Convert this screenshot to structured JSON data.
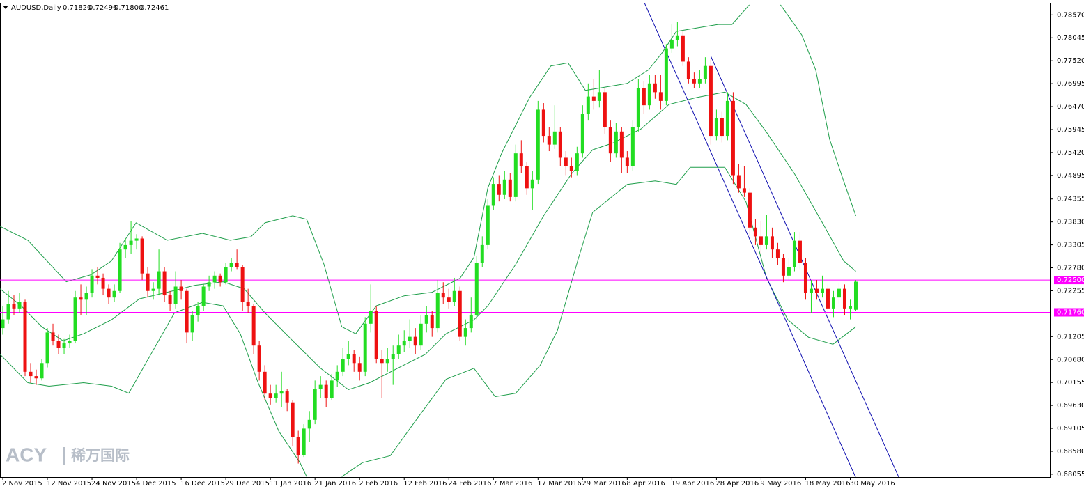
{
  "chart_data": {
    "type": "candlestick",
    "title": "AUDUSD,Daily",
    "ohlc_labels": [
      "0.71820",
      "0.72496",
      "0.71800",
      "0.72461"
    ],
    "up_color": "#22dd22",
    "down_color": "#ee1111",
    "ylim": [
      0.6799,
      0.7883
    ],
    "xlim": [
      -0.5,
      187.8
    ],
    "yticks": [
      {
        "value": 0.7857,
        "label": "0.78570"
      },
      {
        "value": 0.78045,
        "label": "0.78045"
      },
      {
        "value": 0.7752,
        "label": "0.77520"
      },
      {
        "value": 0.76995,
        "label": "0.76995"
      },
      {
        "value": 0.7647,
        "label": "0.76470"
      },
      {
        "value": 0.75945,
        "label": "0.75945"
      },
      {
        "value": 0.7542,
        "label": "0.75420"
      },
      {
        "value": 0.74895,
        "label": "0.74895"
      },
      {
        "value": 0.74355,
        "label": "0.74355"
      },
      {
        "value": 0.7383,
        "label": "0.73830"
      },
      {
        "value": 0.73305,
        "label": "0.73305"
      },
      {
        "value": 0.7278,
        "label": "0.72780"
      },
      {
        "value": 0.72255,
        "label": "0.72255"
      },
      {
        "value": 0.71205,
        "label": "0.71205"
      },
      {
        "value": 0.7068,
        "label": "0.70680"
      },
      {
        "value": 0.70155,
        "label": "0.70155"
      },
      {
        "value": 0.6963,
        "label": "0.69630"
      },
      {
        "value": 0.69105,
        "label": "0.69105"
      },
      {
        "value": 0.6858,
        "label": "0.68580"
      },
      {
        "value": 0.68055,
        "label": "0.68055"
      }
    ],
    "xticks": [
      {
        "value": 0,
        "label": "2 Nov 2015"
      },
      {
        "value": 8,
        "label": "12 Nov 2015"
      },
      {
        "value": 16,
        "label": "24 Nov 2015"
      },
      {
        "value": 24,
        "label": "4 Dec 2015"
      },
      {
        "value": 32,
        "label": "16 Dec 2015"
      },
      {
        "value": 40,
        "label": "29 Dec 2015"
      },
      {
        "value": 48,
        "label": "11 Jan 2016"
      },
      {
        "value": 56,
        "label": "21 Jan 2016"
      },
      {
        "value": 64,
        "label": "2 Feb 2016"
      },
      {
        "value": 72,
        "label": "12 Feb 2016"
      },
      {
        "value": 80,
        "label": "24 Feb 2016"
      },
      {
        "value": 88,
        "label": "7 Mar 2016"
      },
      {
        "value": 96,
        "label": "17 Mar 2016"
      },
      {
        "value": 104,
        "label": "29 Mar 2016"
      },
      {
        "value": 112,
        "label": "8 Apr 2016"
      },
      {
        "value": 120,
        "label": "19 Apr 2016"
      },
      {
        "value": 128,
        "label": "28 Apr 2016"
      },
      {
        "value": 136,
        "label": "9 May 2016"
      },
      {
        "value": 144,
        "label": "18 May 2016"
      },
      {
        "value": 152,
        "label": "30 May 2016"
      }
    ],
    "levels": [
      {
        "value": 0.725,
        "label": "0.72500",
        "color": "#ff00ff"
      },
      {
        "value": 0.7176,
        "label": "0.71760",
        "color": "#ff00ff"
      }
    ],
    "ohlc": [
      [
        0.714,
        0.719,
        0.7125,
        0.716
      ],
      [
        0.716,
        0.7225,
        0.715,
        0.7195
      ],
      [
        0.7195,
        0.7215,
        0.717,
        0.7185
      ],
      [
        0.7185,
        0.722,
        0.7175,
        0.72
      ],
      [
        0.72,
        0.7205,
        0.703,
        0.704
      ],
      [
        0.704,
        0.706,
        0.7015,
        0.703
      ],
      [
        0.703,
        0.7045,
        0.701,
        0.7025
      ],
      [
        0.7025,
        0.707,
        0.702,
        0.706
      ],
      [
        0.706,
        0.714,
        0.705,
        0.713
      ],
      [
        0.713,
        0.715,
        0.71,
        0.711
      ],
      [
        0.711,
        0.7125,
        0.708,
        0.7095
      ],
      [
        0.7095,
        0.7115,
        0.708,
        0.7105
      ],
      [
        0.7105,
        0.7125,
        0.7095,
        0.711
      ],
      [
        0.711,
        0.7225,
        0.7105,
        0.721
      ],
      [
        0.721,
        0.724,
        0.717,
        0.7205
      ],
      [
        0.7205,
        0.7235,
        0.717,
        0.722
      ],
      [
        0.722,
        0.7275,
        0.721,
        0.726
      ],
      [
        0.726,
        0.728,
        0.724,
        0.7255
      ],
      [
        0.7255,
        0.7265,
        0.7215,
        0.723
      ],
      [
        0.723,
        0.724,
        0.7195,
        0.721
      ],
      [
        0.721,
        0.724,
        0.72,
        0.7225
      ],
      [
        0.7225,
        0.7335,
        0.722,
        0.732
      ],
      [
        0.732,
        0.7345,
        0.73,
        0.733
      ],
      [
        0.733,
        0.7385,
        0.731,
        0.734
      ],
      [
        0.734,
        0.7355,
        0.732,
        0.7345
      ],
      [
        0.7345,
        0.735,
        0.725,
        0.7265
      ],
      [
        0.7265,
        0.728,
        0.721,
        0.7225
      ],
      [
        0.7225,
        0.7245,
        0.7205,
        0.723
      ],
      [
        0.723,
        0.732,
        0.7215,
        0.727
      ],
      [
        0.727,
        0.728,
        0.72,
        0.7215
      ],
      [
        0.7215,
        0.7225,
        0.718,
        0.7195
      ],
      [
        0.7195,
        0.727,
        0.7185,
        0.7235
      ],
      [
        0.7235,
        0.725,
        0.7205,
        0.7225
      ],
      [
        0.7225,
        0.723,
        0.7105,
        0.713
      ],
      [
        0.713,
        0.718,
        0.711,
        0.717
      ],
      [
        0.717,
        0.72,
        0.7155,
        0.719
      ],
      [
        0.719,
        0.724,
        0.718,
        0.7235
      ],
      [
        0.7235,
        0.726,
        0.7225,
        0.7245
      ],
      [
        0.7245,
        0.727,
        0.723,
        0.726
      ],
      [
        0.726,
        0.7265,
        0.7235,
        0.7245
      ],
      [
        0.7245,
        0.729,
        0.724,
        0.728
      ],
      [
        0.728,
        0.73,
        0.727,
        0.729
      ],
      [
        0.729,
        0.732,
        0.7275,
        0.728
      ],
      [
        0.728,
        0.7285,
        0.718,
        0.72
      ],
      [
        0.72,
        0.723,
        0.7175,
        0.719
      ],
      [
        0.719,
        0.7195,
        0.708,
        0.71
      ],
      [
        0.71,
        0.711,
        0.702,
        0.704
      ],
      [
        0.704,
        0.7055,
        0.6975,
        0.699
      ],
      [
        0.699,
        0.701,
        0.6965,
        0.698
      ],
      [
        0.698,
        0.701,
        0.697,
        0.699
      ],
      [
        0.699,
        0.704,
        0.696,
        0.6995
      ],
      [
        0.6995,
        0.7,
        0.695,
        0.697
      ],
      [
        0.697,
        0.6975,
        0.687,
        0.689
      ],
      [
        0.689,
        0.6905,
        0.683,
        0.685
      ],
      [
        0.685,
        0.692,
        0.6845,
        0.691
      ],
      [
        0.691,
        0.695,
        0.688,
        0.693
      ],
      [
        0.693,
        0.702,
        0.692,
        0.7
      ],
      [
        0.7,
        0.703,
        0.698,
        0.701
      ],
      [
        0.701,
        0.702,
        0.696,
        0.698
      ],
      [
        0.698,
        0.7035,
        0.6975,
        0.702
      ],
      [
        0.702,
        0.7055,
        0.7005,
        0.704
      ],
      [
        0.704,
        0.7095,
        0.703,
        0.707
      ],
      [
        0.707,
        0.711,
        0.7055,
        0.708
      ],
      [
        0.708,
        0.709,
        0.704,
        0.706
      ],
      [
        0.706,
        0.7075,
        0.702,
        0.704
      ],
      [
        0.704,
        0.7165,
        0.703,
        0.715
      ],
      [
        0.715,
        0.724,
        0.713,
        0.718
      ],
      [
        0.718,
        0.719,
        0.706,
        0.707
      ],
      [
        0.707,
        0.709,
        0.698,
        0.706
      ],
      [
        0.706,
        0.7095,
        0.704,
        0.707
      ],
      [
        0.707,
        0.71,
        0.701,
        0.708
      ],
      [
        0.708,
        0.7125,
        0.707,
        0.71
      ],
      [
        0.71,
        0.7135,
        0.7085,
        0.711
      ],
      [
        0.711,
        0.716,
        0.7095,
        0.712
      ],
      [
        0.712,
        0.714,
        0.708,
        0.71
      ],
      [
        0.71,
        0.717,
        0.709,
        0.715
      ],
      [
        0.715,
        0.719,
        0.713,
        0.717
      ],
      [
        0.717,
        0.718,
        0.712,
        0.714
      ],
      [
        0.714,
        0.725,
        0.713,
        0.722
      ],
      [
        0.722,
        0.7245,
        0.7195,
        0.721
      ],
      [
        0.721,
        0.723,
        0.7185,
        0.72
      ],
      [
        0.72,
        0.7255,
        0.719,
        0.7225
      ],
      [
        0.7225,
        0.7235,
        0.711,
        0.712
      ],
      [
        0.712,
        0.716,
        0.71,
        0.714
      ],
      [
        0.714,
        0.721,
        0.713,
        0.717
      ],
      [
        0.717,
        0.7305,
        0.716,
        0.729
      ],
      [
        0.729,
        0.735,
        0.728,
        0.733
      ],
      [
        0.733,
        0.7435,
        0.732,
        0.742
      ],
      [
        0.742,
        0.7485,
        0.741,
        0.747
      ],
      [
        0.747,
        0.749,
        0.743,
        0.7445
      ],
      [
        0.7445,
        0.75,
        0.7435,
        0.748
      ],
      [
        0.748,
        0.7495,
        0.743,
        0.744
      ],
      [
        0.744,
        0.756,
        0.743,
        0.754
      ],
      [
        0.754,
        0.757,
        0.7495,
        0.751
      ],
      [
        0.751,
        0.752,
        0.7445,
        0.746
      ],
      [
        0.746,
        0.75,
        0.741,
        0.748
      ],
      [
        0.748,
        0.766,
        0.747,
        0.764
      ],
      [
        0.764,
        0.7655,
        0.7565,
        0.758
      ],
      [
        0.758,
        0.76,
        0.7545,
        0.756
      ],
      [
        0.756,
        0.765,
        0.755,
        0.759
      ],
      [
        0.759,
        0.76,
        0.751,
        0.753
      ],
      [
        0.753,
        0.7545,
        0.749,
        0.751
      ],
      [
        0.751,
        0.753,
        0.7485,
        0.75
      ],
      [
        0.75,
        0.7555,
        0.749,
        0.754
      ],
      [
        0.754,
        0.765,
        0.753,
        0.763
      ],
      [
        0.763,
        0.77,
        0.7615,
        0.767
      ],
      [
        0.767,
        0.771,
        0.764,
        0.766
      ],
      [
        0.766,
        0.773,
        0.7645,
        0.768
      ],
      [
        0.768,
        0.769,
        0.7585,
        0.76
      ],
      [
        0.76,
        0.7615,
        0.752,
        0.754
      ],
      [
        0.754,
        0.761,
        0.753,
        0.759
      ],
      [
        0.759,
        0.76,
        0.7495,
        0.753
      ],
      [
        0.753,
        0.7545,
        0.7495,
        0.751
      ],
      [
        0.751,
        0.7615,
        0.75,
        0.76
      ],
      [
        0.76,
        0.771,
        0.759,
        0.769
      ],
      [
        0.769,
        0.7705,
        0.763,
        0.765
      ],
      [
        0.765,
        0.772,
        0.764,
        0.77
      ],
      [
        0.77,
        0.772,
        0.7665,
        0.768
      ],
      [
        0.768,
        0.772,
        0.764,
        0.766
      ],
      [
        0.766,
        0.779,
        0.765,
        0.778
      ],
      [
        0.778,
        0.7835,
        0.777,
        0.78
      ],
      [
        0.78,
        0.784,
        0.7785,
        0.781
      ],
      [
        0.781,
        0.782,
        0.774,
        0.775
      ],
      [
        0.775,
        0.776,
        0.77,
        0.771
      ],
      [
        0.771,
        0.7725,
        0.769,
        0.77
      ],
      [
        0.77,
        0.773,
        0.769,
        0.771
      ],
      [
        0.771,
        0.776,
        0.77,
        0.774
      ],
      [
        0.774,
        0.7755,
        0.756,
        0.758
      ],
      [
        0.758,
        0.764,
        0.757,
        0.762
      ],
      [
        0.762,
        0.7635,
        0.7565,
        0.758
      ],
      [
        0.758,
        0.768,
        0.757,
        0.766
      ],
      [
        0.766,
        0.768,
        0.747,
        0.749
      ],
      [
        0.749,
        0.7515,
        0.745,
        0.746
      ],
      [
        0.746,
        0.751,
        0.744,
        0.745
      ],
      [
        0.745,
        0.746,
        0.735,
        0.737
      ],
      [
        0.737,
        0.739,
        0.733,
        0.735
      ],
      [
        0.735,
        0.7385,
        0.731,
        0.733
      ],
      [
        0.733,
        0.74,
        0.732,
        0.735
      ],
      [
        0.735,
        0.737,
        0.73,
        0.732
      ],
      [
        0.732,
        0.7335,
        0.7285,
        0.73
      ],
      [
        0.73,
        0.731,
        0.7245,
        0.726
      ],
      [
        0.726,
        0.73,
        0.725,
        0.728
      ],
      [
        0.728,
        0.736,
        0.727,
        0.734
      ],
      [
        0.734,
        0.736,
        0.7275,
        0.729
      ],
      [
        0.729,
        0.73,
        0.7205,
        0.722
      ],
      [
        0.722,
        0.725,
        0.7175,
        0.723
      ],
      [
        0.723,
        0.725,
        0.7205,
        0.722
      ],
      [
        0.722,
        0.726,
        0.721,
        0.723
      ],
      [
        0.723,
        0.724,
        0.715,
        0.7185
      ],
      [
        0.7185,
        0.7225,
        0.7165,
        0.721
      ],
      [
        0.721,
        0.7245,
        0.7195,
        0.723
      ],
      [
        0.723,
        0.724,
        0.717,
        0.7185
      ],
      [
        0.7185,
        0.7205,
        0.716,
        0.719
      ],
      [
        0.7182,
        0.72496,
        0.718,
        0.72461
      ]
    ],
    "series": [
      {
        "color": "#1e9e4a",
        "x": [
          -0.5,
          4.5,
          11.4,
          15.8,
          19.5,
          23.9,
          29.5,
          35.8,
          40.8,
          44.5,
          47,
          52,
          54.5,
          57.6,
          60.8,
          63.3,
          67,
          72,
          77,
          82,
          84.5,
          87,
          89.5,
          94.5,
          98.3,
          101.4,
          104.5,
          108.3,
          112,
          115.8,
          118.3,
          120.8,
          124.5,
          128.3,
          130.8,
          133.9,
          null,
          139.5,
          143.3,
          145.8,
          148.3,
          150.8,
          153
        ],
        "values": [
          0.7373,
          0.7341,
          0.7246,
          0.7262,
          0.7294,
          0.7381,
          0.7341,
          0.7357,
          0.7341,
          0.7349,
          0.7381,
          0.7397,
          0.7389,
          0.7286,
          0.7143,
          0.7127,
          0.7191,
          0.7214,
          0.7222,
          0.7254,
          0.7302,
          0.7461,
          0.7541,
          0.7668,
          0.774,
          0.7747,
          0.7684,
          0.7692,
          0.77,
          0.7731,
          0.7771,
          0.7819,
          0.7827,
          0.7835,
          0.7835,
          0.788,
          null,
          0.788,
          0.7811,
          0.7731,
          0.7572,
          0.7477,
          0.7397
        ]
      },
      {
        "color": "#1e9e4a",
        "x": [
          -0.5,
          3.3,
          7,
          10.8,
          14.5,
          19.5,
          24.5,
          29.5,
          34.5,
          39.5,
          43.3,
          47,
          52,
          57,
          62,
          65.8,
          70.8,
          75.8,
          79.5,
          84.5,
          87,
          92,
          97,
          102,
          105.8,
          109.5,
          114.5,
          119.5,
          124.5,
          129.5,
          133.3,
          137,
          142,
          147,
          150.8,
          153
        ],
        "values": [
          0.723,
          0.7191,
          0.7143,
          0.7111,
          0.7127,
          0.7159,
          0.7207,
          0.7222,
          0.7238,
          0.7246,
          0.723,
          0.7175,
          0.7111,
          0.7048,
          0.6999,
          0.7015,
          0.7048,
          0.708,
          0.7127,
          0.7159,
          0.7191,
          0.7286,
          0.7397,
          0.7493,
          0.7548,
          0.7564,
          0.7596,
          0.7652,
          0.7668,
          0.768,
          0.7652,
          0.7588,
          0.7493,
          0.7381,
          0.7294,
          0.727
        ]
      },
      {
        "color": "#1e9e4a",
        "x": [
          -0.5,
          4.5,
          8.3,
          14.5,
          19.5,
          22.6,
          25.8,
          30.8,
          35.8,
          39.5,
          42.6,
          45.8,
          49.5,
          53.3,
          54.5,
          null,
          60.8,
          64.5,
          69.5,
          74.5,
          79.5,
          84.5,
          88.3,
          92,
          96.4,
          99.5,
          103.3,
          105.8,
          112,
          117,
          120.8,
          123.3,
          129.5,
          133.3,
          137,
          140.8,
          144.5,
          148.9,
          153
        ],
        "values": [
          0.708,
          0.7015,
          0.7007,
          0.7015,
          0.7007,
          0.6991,
          0.7063,
          0.7175,
          0.7199,
          0.7191,
          0.7127,
          0.7015,
          0.6904,
          0.6832,
          0.68,
          null,
          0.68,
          0.6832,
          0.6848,
          0.6936,
          0.7023,
          0.7048,
          0.6983,
          0.6991,
          0.7055,
          0.7135,
          0.7302,
          0.7405,
          0.7469,
          0.7477,
          0.7469,
          0.7508,
          0.7508,
          0.7429,
          0.7254,
          0.7159,
          0.7119,
          0.7103,
          0.7143
        ]
      }
    ],
    "watermark": [
      "ACY",
      "稀万国际"
    ]
  }
}
